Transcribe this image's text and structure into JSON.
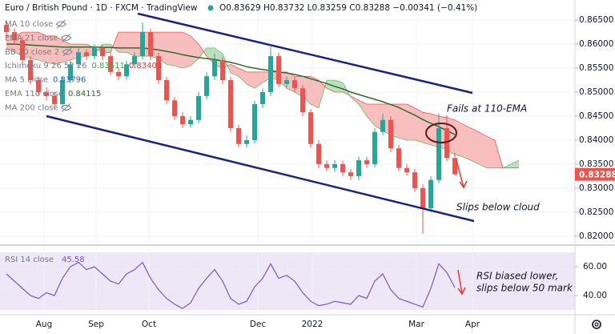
{
  "header": {
    "symbol": "Euro / British Pound · 1D · FXCM · TradingView",
    "ohlc": "O0.83629 H0.83732 L0.83259 C0.83288 −0.00341 (−0.41%)"
  },
  "chart_data": [
    {
      "type": "candlestick",
      "title": "Euro / British Pound · 1D · FXCM",
      "up_color": "#26a69a",
      "down_color": "#ef5350",
      "open": [
        0.864,
        0.8625,
        0.8608,
        0.8567,
        0.8525,
        0.85,
        0.8492,
        0.8475,
        0.8525,
        0.8558,
        0.8583,
        0.8575,
        0.8592,
        0.8575,
        0.8542,
        0.8533,
        0.8558,
        0.8575,
        0.8625,
        0.8575,
        0.8525,
        0.8483,
        0.845,
        0.8433,
        0.8442,
        0.8492,
        0.8533,
        0.8567,
        0.8525,
        0.8425,
        0.8392,
        0.84,
        0.8475,
        0.85,
        0.8575,
        0.8517,
        0.8525,
        0.8508,
        0.8458,
        0.8392,
        0.835,
        0.8342,
        0.835,
        0.8333,
        0.8325,
        0.8358,
        0.835,
        0.8417,
        0.8442,
        0.8383,
        0.8342,
        0.8333,
        0.83,
        0.8258,
        0.8317,
        0.8425,
        0.83629
      ],
      "high": [
        0.865,
        0.8633,
        0.8615,
        0.8575,
        0.8533,
        0.851,
        0.85,
        0.8533,
        0.8566,
        0.8592,
        0.859,
        0.86,
        0.8598,
        0.8582,
        0.855,
        0.8565,
        0.8583,
        0.8645,
        0.8632,
        0.8582,
        0.8532,
        0.849,
        0.8458,
        0.845,
        0.85,
        0.8541,
        0.858,
        0.8573,
        0.8532,
        0.8432,
        0.841,
        0.8482,
        0.8508,
        0.8595,
        0.8582,
        0.8533,
        0.8532,
        0.8515,
        0.8465,
        0.84,
        0.8358,
        0.8358,
        0.8357,
        0.834,
        0.8366,
        0.8365,
        0.8425,
        0.8455,
        0.845,
        0.839,
        0.835,
        0.834,
        0.8308,
        0.8325,
        0.8455,
        0.8452,
        0.83732
      ],
      "low": [
        0.8617,
        0.86,
        0.8558,
        0.8517,
        0.8492,
        0.8483,
        0.8465,
        0.8468,
        0.8518,
        0.855,
        0.8567,
        0.8568,
        0.8567,
        0.8535,
        0.8525,
        0.8526,
        0.855,
        0.8568,
        0.8567,
        0.8517,
        0.8475,
        0.8442,
        0.8425,
        0.8426,
        0.8435,
        0.8485,
        0.8525,
        0.8517,
        0.8417,
        0.8385,
        0.8384,
        0.8393,
        0.8467,
        0.8492,
        0.851,
        0.851,
        0.85,
        0.845,
        0.8384,
        0.8342,
        0.8335,
        0.8334,
        0.8325,
        0.8317,
        0.8317,
        0.8342,
        0.8343,
        0.841,
        0.8375,
        0.8335,
        0.8326,
        0.8292,
        0.8205,
        0.825,
        0.831,
        0.8356,
        0.83259
      ],
      "close": [
        0.8625,
        0.8608,
        0.8567,
        0.8525,
        0.85,
        0.8492,
        0.8475,
        0.8525,
        0.8558,
        0.8583,
        0.8575,
        0.8592,
        0.8575,
        0.8542,
        0.8533,
        0.8558,
        0.8575,
        0.8625,
        0.8575,
        0.8525,
        0.8483,
        0.845,
        0.8433,
        0.8442,
        0.8492,
        0.8533,
        0.8567,
        0.8525,
        0.8425,
        0.8392,
        0.84,
        0.8475,
        0.85,
        0.8575,
        0.8517,
        0.8525,
        0.8508,
        0.8458,
        0.8392,
        0.835,
        0.8342,
        0.835,
        0.8333,
        0.8325,
        0.8358,
        0.835,
        0.8417,
        0.8442,
        0.8383,
        0.8342,
        0.8333,
        0.83,
        0.8258,
        0.8317,
        0.8425,
        0.8363,
        0.83288
      ],
      "series": [
        {
          "name": "EMA 110 close",
          "color": "#2e6b2e",
          "values": [
            0.86,
            0.86,
            0.8599,
            0.8598,
            0.8597,
            0.8596,
            0.8595,
            0.8594,
            0.8594,
            0.8594,
            0.8594,
            0.8594,
            0.8593,
            0.8593,
            0.8592,
            0.8592,
            0.8592,
            0.8592,
            0.859,
            0.8588,
            0.8585,
            0.8582,
            0.8578,
            0.8575,
            0.8572,
            0.857,
            0.8568,
            0.8565,
            0.8562,
            0.8558,
            0.8553,
            0.855,
            0.8547,
            0.8545,
            0.8542,
            0.854,
            0.8537,
            0.8533,
            0.8528,
            0.8523,
            0.8518,
            0.8512,
            0.8507,
            0.85,
            0.8495,
            0.849,
            0.8485,
            0.848,
            0.8474,
            0.8468,
            0.846,
            0.8452,
            0.8443,
            0.8435,
            0.8428,
            0.842,
            0.84115
          ]
        }
      ],
      "cloud": {
        "up_color": "#a5d6a7",
        "down_color": "#f7a9a8",
        "span_a": [
          0.8592,
          0.8583,
          0.8575,
          0.857,
          0.8567,
          0.8562,
          0.8558,
          0.8562,
          0.8567,
          0.8572,
          0.8575,
          0.858,
          0.86,
          0.86,
          0.8583,
          0.8583,
          0.8575,
          0.8575,
          0.8575,
          0.857,
          0.8558,
          0.8555,
          0.855,
          0.8555,
          0.857,
          0.8592,
          0.8592,
          0.858,
          0.854,
          0.8533,
          0.8517,
          0.8508,
          0.852,
          0.853,
          0.8525,
          0.8508,
          0.85,
          0.849,
          0.8475,
          0.8467,
          0.8525,
          0.8525,
          0.852,
          0.849,
          0.8475,
          0.845,
          0.843,
          0.842,
          0.841,
          0.8405,
          0.84,
          0.84,
          0.8395,
          0.839,
          0.8385,
          0.838,
          0.837,
          0.8365,
          0.8358,
          0.835,
          0.8342,
          0.8342,
          0.8342,
          0.835,
          0.8358
        ],
        "span_b": [
          0.8617,
          0.8617,
          0.8625,
          0.8625,
          0.8625,
          0.8617,
          0.8617,
          0.8608,
          0.86,
          0.86,
          0.86,
          0.8592,
          0.8583,
          0.8583,
          0.8625,
          0.8625,
          0.8625,
          0.8625,
          0.8625,
          0.8625,
          0.8625,
          0.8625,
          0.8625,
          0.8617,
          0.86,
          0.8575,
          0.8558,
          0.855,
          0.8558,
          0.855,
          0.8542,
          0.8542,
          0.8542,
          0.8542,
          0.8542,
          0.8542,
          0.8533,
          0.8533,
          0.8533,
          0.8525,
          0.8508,
          0.85,
          0.85,
          0.8492,
          0.8483,
          0.8475,
          0.8475,
          0.8475,
          0.8475,
          0.8475,
          0.8475,
          0.8467,
          0.8458,
          0.8455,
          0.845,
          0.8447,
          0.8442,
          0.8433,
          0.8425,
          0.8417,
          0.8408,
          0.84,
          0.8342,
          0.8342,
          0.8342
        ]
      },
      "indicator_labels": [
        {
          "name": "MA 10 close"
        },
        {
          "name": "EMA 21 close"
        },
        {
          "name": "BB 20 close 2"
        },
        {
          "name": "Ichimoku 9 26 52 26",
          "readings": [
            {
              "text": "0.83611",
              "color": "#43a047"
            },
            {
              "text": "0.83403",
              "color": "#e53935"
            }
          ]
        },
        {
          "name": "MA 5 close",
          "readings": [
            {
              "text": "0.83796",
              "color": "#1e63c8"
            }
          ]
        },
        {
          "name": "EMA 110 close",
          "readings": [
            {
              "text": "0.84115",
              "color": "#2e6b2e"
            }
          ]
        },
        {
          "name": "MA 200 close"
        }
      ],
      "annotations": [
        "Fails at 110-EMA",
        "Slips below cloud"
      ],
      "xlim": [
        -0.8,
        71
      ],
      "ylim": [
        0.8183,
        0.8692
      ],
      "xticks": [
        {
          "value": 4.7,
          "label": "Aug"
        },
        {
          "value": 11.2,
          "label": "Sep"
        },
        {
          "value": 17.8,
          "label": "Oct"
        },
        {
          "value": 31.4,
          "label": "Dec"
        },
        {
          "value": 38.2,
          "label": "2022"
        },
        {
          "value": 51.2,
          "label": "Mar"
        },
        {
          "value": 58.2,
          "label": "Apr"
        }
      ],
      "yticks": [
        {
          "value": 0.865,
          "label": "0.86500"
        },
        {
          "value": 0.86,
          "label": "0.86000"
        },
        {
          "value": 0.855,
          "label": "0.85500"
        },
        {
          "value": 0.85,
          "label": "0.85000"
        },
        {
          "value": 0.845,
          "label": "0.84500"
        },
        {
          "value": 0.84,
          "label": "0.84000"
        },
        {
          "value": 0.835,
          "label": "0.83500"
        },
        {
          "value": 0.83,
          "label": "0.83000"
        },
        {
          "value": 0.825,
          "label": "0.82500"
        },
        {
          "value": 0.82,
          "label": "0.82000"
        }
      ],
      "grid": true
    },
    {
      "type": "line",
      "series": [
        {
          "name": "RSI 14 close",
          "color": "#7e57c2",
          "values": [
            55,
            50,
            45,
            40,
            38,
            42,
            40,
            52,
            60,
            63,
            58,
            60,
            55,
            50,
            48,
            55,
            58,
            63,
            52,
            44,
            38,
            34,
            31,
            35,
            45,
            52,
            58,
            50,
            38,
            34,
            36,
            46,
            52,
            62,
            52,
            54,
            50,
            42,
            36,
            33,
            34,
            36,
            35,
            34,
            40,
            38,
            50,
            55,
            44,
            38,
            36,
            34,
            32,
            45,
            62,
            56,
            45.58
          ]
        }
      ],
      "band": [
        30,
        70
      ],
      "band_color": "#ede7f6",
      "annotations": [
        "RSI biased lower,",
        "slips below 50 mark"
      ],
      "ylim": [
        27.2,
        71.7
      ],
      "yticks": [
        {
          "value": 60,
          "label": "60.00"
        },
        {
          "value": 40,
          "label": "40.00"
        }
      ],
      "grid": true
    }
  ]
}
